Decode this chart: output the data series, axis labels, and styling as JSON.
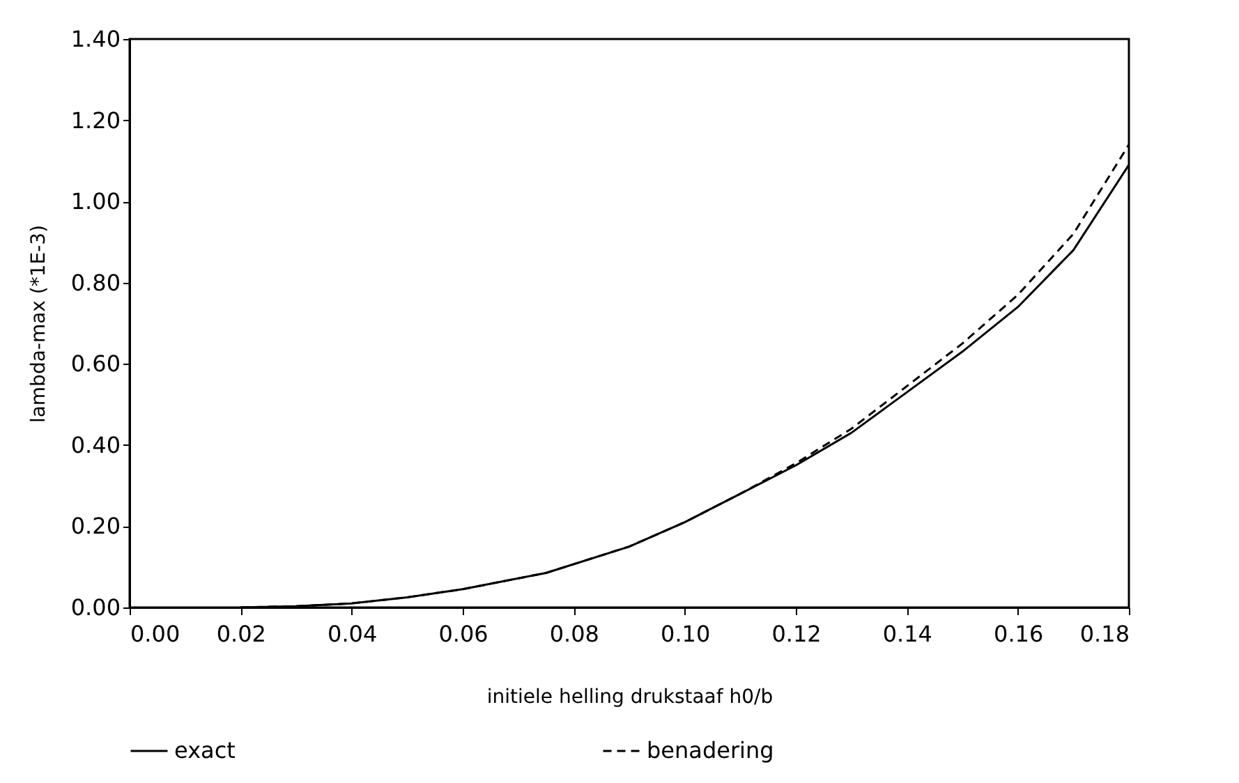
{
  "chart_data": {
    "type": "line",
    "xlabel": "initiele helling drukstaaf   h0/b",
    "ylabel": "lambda-max    (*1E-3)",
    "xlim": [
      0,
      0.18
    ],
    "ylim": [
      0,
      1.4
    ],
    "xticks": [
      {
        "value": 0,
        "label": "0.00"
      },
      {
        "value": 0.02,
        "label": "0.02"
      },
      {
        "value": 0.04,
        "label": "0.04"
      },
      {
        "value": 0.06,
        "label": "0.06"
      },
      {
        "value": 0.08,
        "label": "0.08"
      },
      {
        "value": 0.1,
        "label": "0.10"
      },
      {
        "value": 0.12,
        "label": "0.12"
      },
      {
        "value": 0.14,
        "label": "0.14"
      },
      {
        "value": 0.16,
        "label": "0.16"
      },
      {
        "value": 0.18,
        "label": "0.18"
      }
    ],
    "yticks": [
      {
        "value": 0,
        "label": "0.00"
      },
      {
        "value": 0.2,
        "label": "0.20"
      },
      {
        "value": 0.4,
        "label": "0.40"
      },
      {
        "value": 0.6,
        "label": "0.60"
      },
      {
        "value": 0.8,
        "label": "0.80"
      },
      {
        "value": 1.0,
        "label": "1.00"
      },
      {
        "value": 1.2,
        "label": "1.20"
      },
      {
        "value": 1.4,
        "label": "1.40"
      }
    ],
    "x": [
      0.02,
      0.03,
      0.04,
      0.05,
      0.06,
      0.075,
      0.09,
      0.1,
      0.11,
      0.12,
      0.13,
      0.14,
      0.15,
      0.16,
      0.17,
      0.18
    ],
    "series": [
      {
        "name": "exact",
        "color": "#000000",
        "line_style": "solid",
        "values": [
          0.0,
          0.003,
          0.01,
          0.025,
          0.045,
          0.085,
          0.15,
          0.21,
          0.28,
          0.35,
          0.43,
          0.53,
          0.63,
          0.74,
          0.88,
          1.09
        ]
      },
      {
        "name": "benadering",
        "color": "#000000",
        "line_style": "dashed",
        "values": [
          0.0,
          0.003,
          0.01,
          0.025,
          0.045,
          0.085,
          0.15,
          0.21,
          0.28,
          0.355,
          0.44,
          0.545,
          0.65,
          0.77,
          0.92,
          1.14
        ]
      }
    ],
    "legend": "bottom",
    "grid": false
  }
}
